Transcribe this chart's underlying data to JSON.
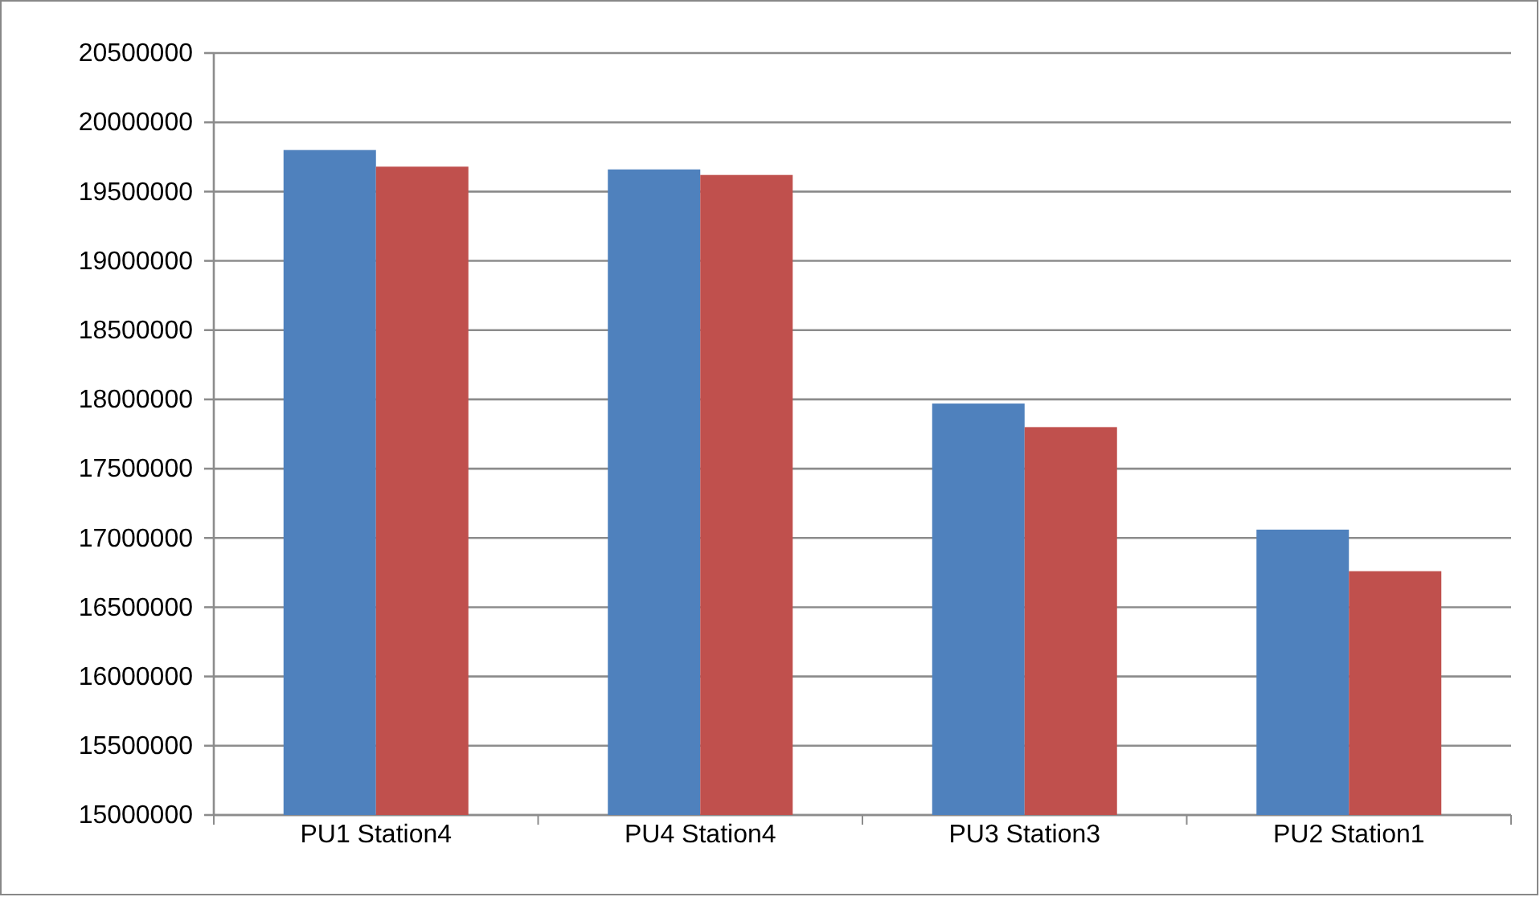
{
  "chart_data": {
    "type": "bar",
    "categories": [
      "PU1 Station4",
      "PU4 Station4",
      "PU3 Station3",
      "PU2 Station1"
    ],
    "series": [
      {
        "color": "#4f81bd",
        "values": [
          19800000,
          19660000,
          17970000,
          17060000
        ]
      },
      {
        "color": "#c0504d",
        "values": [
          19680000,
          19620000,
          17800000,
          16760000
        ]
      }
    ],
    "ylim": [
      15000000,
      20500000
    ],
    "yticks": [
      15000000,
      15500000,
      16000000,
      16500000,
      17000000,
      17500000,
      18000000,
      18500000,
      19000000,
      19500000,
      20000000,
      20500000
    ],
    "grid": "y"
  }
}
